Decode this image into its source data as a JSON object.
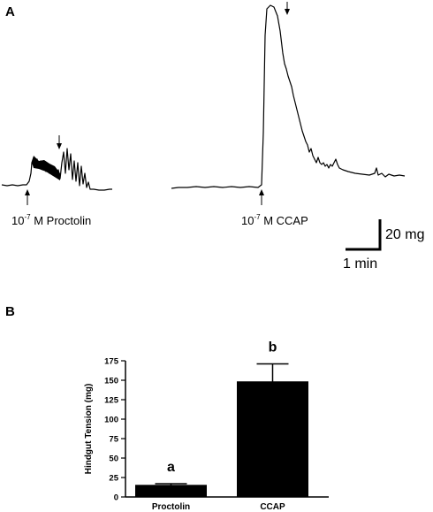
{
  "panel_a": {
    "label": "A",
    "traces": [
      {
        "name": "proctolin-trace",
        "base": "10",
        "exponent": "-7",
        "unit": " M ",
        "agent": "Proctolin"
      },
      {
        "name": "ccap-trace",
        "base": "10",
        "exponent": "-7",
        "unit": " M ",
        "agent": "CCAP"
      }
    ],
    "scale_bar": {
      "vertical_label": "20 mg",
      "horizontal_label": "1 min"
    }
  },
  "panel_b": {
    "label": "B"
  },
  "chart_data": {
    "type": "bar",
    "ylabel": "Hindgut Tension (mg)",
    "xlabel": "",
    "categories": [
      "Proctolin",
      "CCAP"
    ],
    "values": [
      15,
      148
    ],
    "errors": [
      2,
      23
    ],
    "significance": [
      "a",
      "b"
    ],
    "ylim": [
      0,
      175
    ],
    "yticks": [
      0,
      25,
      50,
      75,
      100,
      125,
      150,
      175
    ],
    "bar_color": "#000000",
    "grid": false,
    "legend": "none"
  }
}
